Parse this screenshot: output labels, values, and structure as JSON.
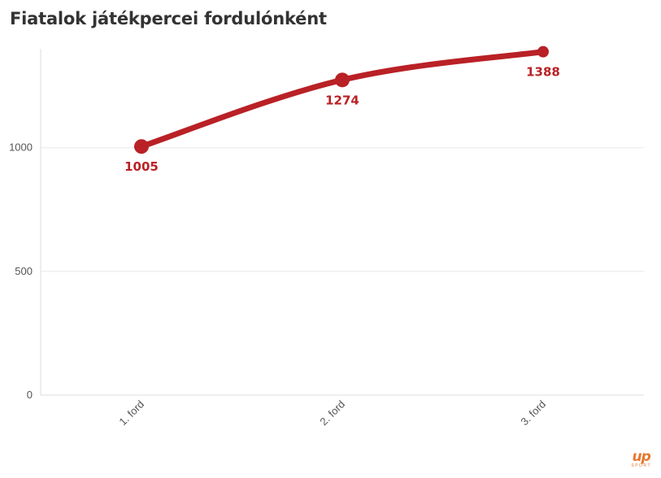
{
  "chart_data": {
    "type": "line",
    "title": "Fiatalok játékpercei fordulónként",
    "categories": [
      "1. ford",
      "2. ford",
      "3. ford"
    ],
    "series": [
      {
        "values": [
          1005,
          1274,
          1388
        ],
        "color": "#b92126"
      }
    ],
    "ylim": [
      0,
      1400
    ],
    "yticks": [
      0,
      500,
      1000
    ],
    "grid": true,
    "xlabel": "",
    "ylabel": ""
  },
  "logo": {
    "mark": "up",
    "sub": "SPORT",
    "color": "#e8772e"
  }
}
